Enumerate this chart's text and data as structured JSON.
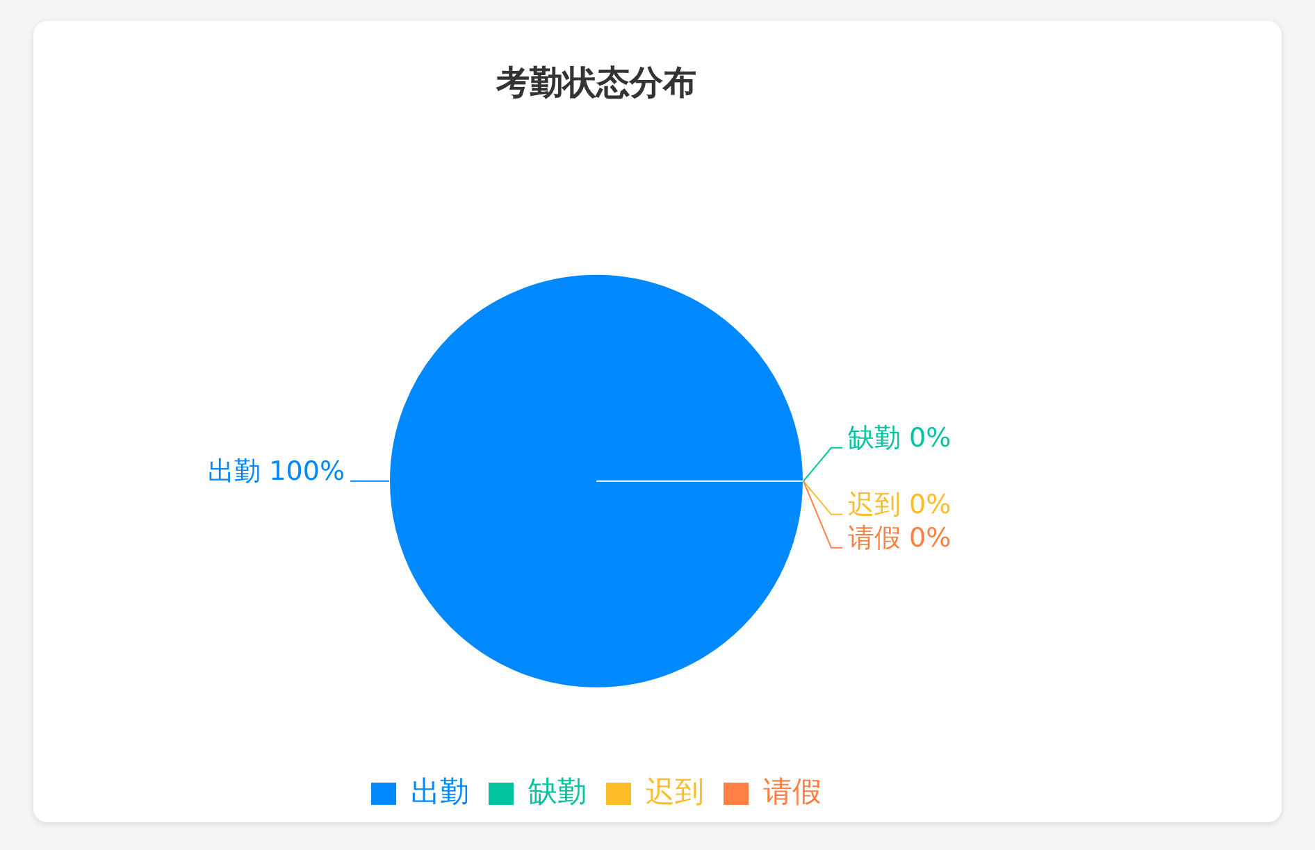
{
  "chart_data": {
    "type": "pie",
    "title": "考勤状态分布",
    "categories": [
      "出勤",
      "缺勤",
      "迟到",
      "请假"
    ],
    "values": [
      100,
      0,
      0,
      0
    ],
    "colors": [
      "#0088fe",
      "#00c49f",
      "#ffbb28",
      "#ff8042"
    ],
    "value_labels": [
      "100%",
      "0%",
      "0%",
      "0%"
    ],
    "legend": "bottom"
  }
}
